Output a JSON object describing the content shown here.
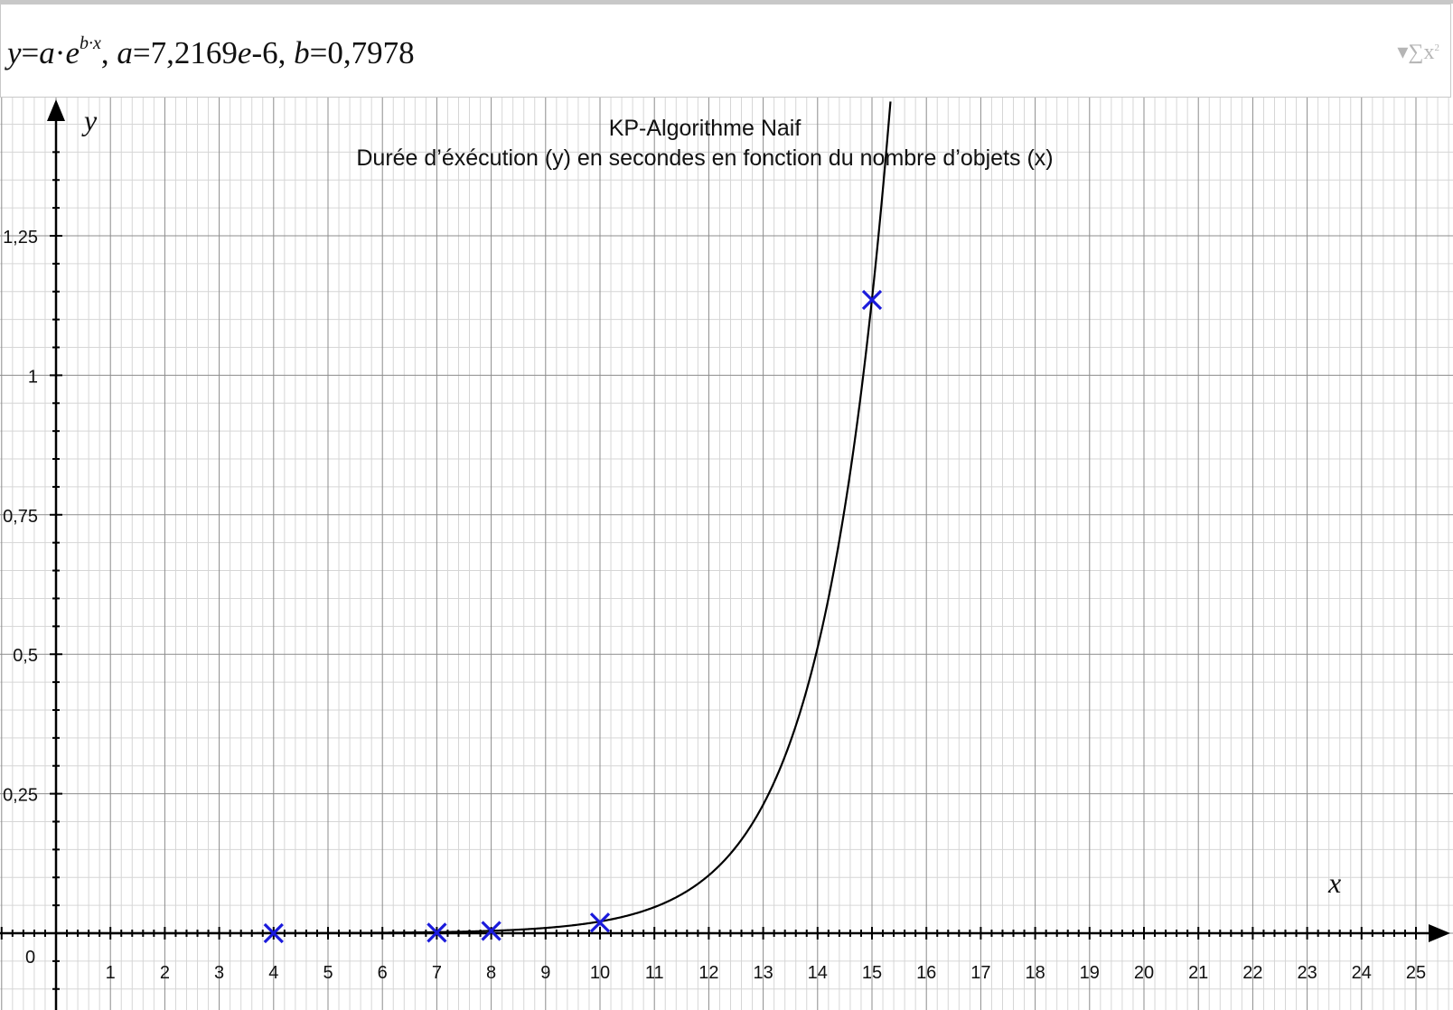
{
  "formula_bar": {
    "model_lhs": "y",
    "model_eq": "=",
    "model_a": "a",
    "model_dot1": "·",
    "model_e": "e",
    "model_exp": "b·x",
    "sep1": ", ",
    "param_a_name": "a",
    "param_a_eq": "=7,2169",
    "param_a_e": "e",
    "param_a_tail": "-6",
    "sep2": ", ",
    "param_b_name": "b",
    "param_b_value": "=0,7978",
    "sigma_icon": "sum-x-squared-icon",
    "sigma_text": "∑x",
    "sigma_sup": "2"
  },
  "chart_data": {
    "type": "scatter",
    "title": "KP-Algorithme Naif",
    "subtitle": "Durée d’éxécution (y) en secondes en fonction du nombre d’objets (x)",
    "xlabel": "x",
    "ylabel": "y",
    "origin_label": "0",
    "xlim": [
      -1,
      25
    ],
    "ylim": [
      -0.08,
      1.49
    ],
    "x_ticks": [
      "1",
      "2",
      "3",
      "4",
      "5",
      "6",
      "7",
      "8",
      "9",
      "10",
      "11",
      "12",
      "13",
      "14",
      "15",
      "16",
      "17",
      "18",
      "19",
      "20",
      "21",
      "22",
      "23",
      "24",
      "25"
    ],
    "y_ticks": [
      {
        "value": 0.25,
        "label": "0,25"
      },
      {
        "value": 0.5,
        "label": "0,5"
      },
      {
        "value": 0.75,
        "label": "0,75"
      },
      {
        "value": 1,
        "label": "1"
      },
      {
        "value": 1.25,
        "label": "1,25"
      }
    ],
    "grid": true,
    "points": [
      {
        "x": 4,
        "y": 0.0
      },
      {
        "x": 7,
        "y": 0.001
      },
      {
        "x": 8,
        "y": 0.004
      },
      {
        "x": 10,
        "y": 0.019
      },
      {
        "x": 15,
        "y": 1.135
      }
    ],
    "fit": {
      "model": "y=a·e^(b·x)",
      "a": 7.2169e-06,
      "b": 0.7978
    },
    "colors": {
      "points": "#1a1adb",
      "curve": "#000000",
      "grid_major": "#8c8c8c",
      "grid_minor": "#d6d6d6"
    }
  }
}
